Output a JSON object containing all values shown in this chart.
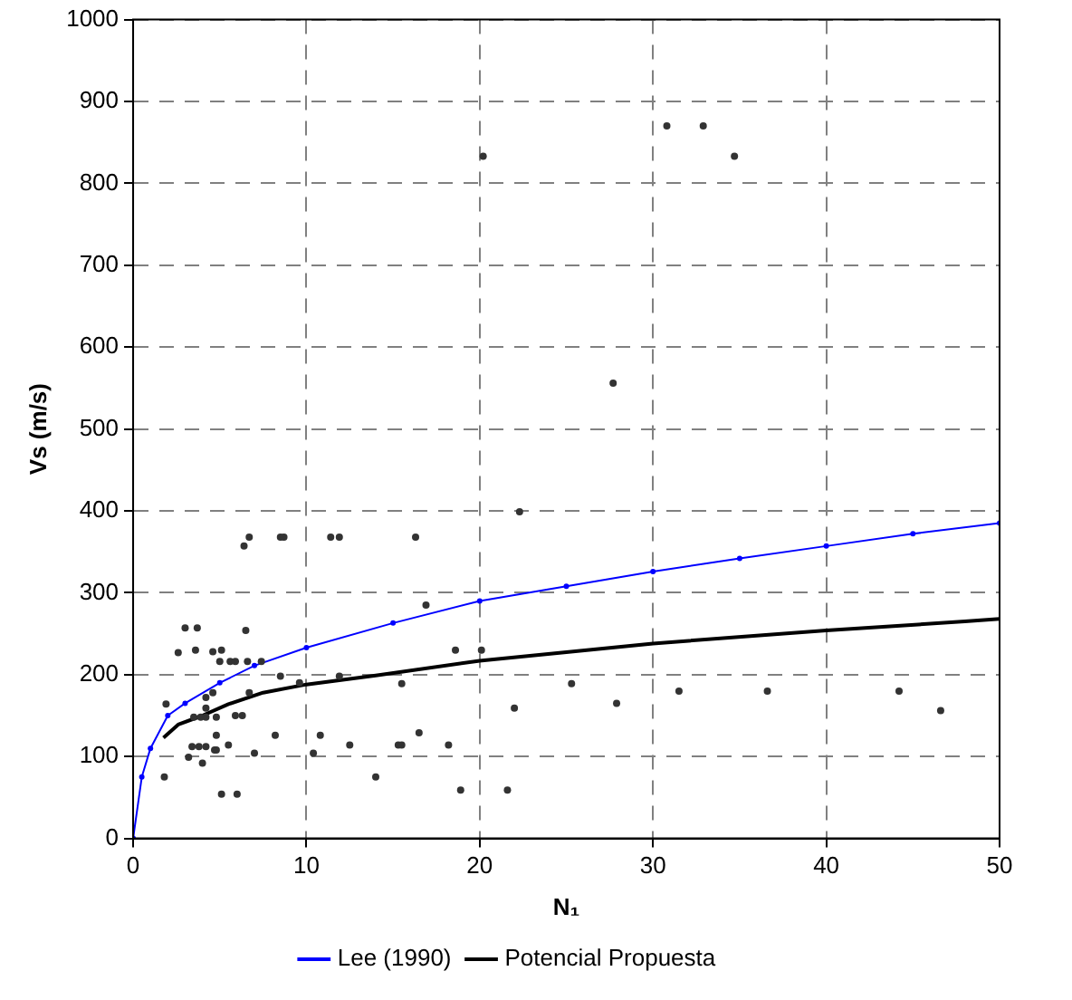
{
  "chart_data": {
    "type": "scatter",
    "xlabel": "N₁",
    "ylabel": "Vs (m/s)",
    "xlim": [
      0,
      50
    ],
    "xticks": [
      0,
      10,
      20,
      30,
      40,
      50
    ],
    "ylim": [
      0,
      1000
    ],
    "yticks": [
      0,
      100,
      200,
      300,
      400,
      500,
      600,
      700,
      800,
      900,
      1000
    ],
    "grid": true,
    "legend": "bottom",
    "series": [
      {
        "type": "scatter",
        "color": "#333333",
        "marker": "circle",
        "x": [
          6.4,
          6.7,
          8.5,
          8.7,
          11.4,
          11.9,
          3.0,
          3.7,
          6.5,
          2.6,
          3.6,
          4.6,
          5.1,
          5.0,
          5.6,
          5.9,
          6.6,
          7.4,
          8.5,
          9.6,
          11.9,
          4.6,
          6.7,
          1.9,
          4.2,
          4.2,
          3.5,
          3.9,
          4.2,
          4.8,
          5.9,
          6.3,
          4.8,
          8.2,
          10.8,
          12.5,
          3.4,
          3.8,
          4.2,
          4.7,
          4.8,
          5.5,
          3.2,
          7.0,
          10.4,
          4.0,
          1.8,
          14.0,
          5.1,
          6.0,
          16.3,
          22.3,
          16.9,
          18.6,
          20.1,
          15.5,
          25.3,
          27.9,
          31.5,
          36.6,
          44.2,
          46.6,
          22.0,
          16.5,
          15.3,
          15.5,
          18.2,
          18.9,
          21.6,
          20.2,
          30.8,
          32.9,
          34.7,
          27.7
        ],
        "values": [
          357,
          368,
          368,
          368,
          368,
          368,
          257,
          257,
          254,
          227,
          230,
          228,
          230,
          216,
          216,
          216,
          216,
          216,
          198,
          190,
          198,
          178,
          178,
          164,
          172,
          159,
          148,
          148,
          148,
          148,
          150,
          150,
          126,
          126,
          126,
          114,
          112,
          112,
          112,
          108,
          108,
          114,
          99,
          104,
          104,
          92,
          75,
          75,
          54,
          54,
          368,
          399,
          285,
          230,
          230,
          189,
          189,
          165,
          180,
          180,
          180,
          156,
          159,
          129,
          114,
          114,
          114,
          59,
          59,
          833,
          870,
          870,
          833,
          556
        ]
      },
      {
        "type": "line",
        "name": "Lee (1990)",
        "color": "#0000ff",
        "marker": "circle",
        "line_style": "solid",
        "x": [
          0,
          0.5,
          1,
          2,
          3,
          5,
          7,
          10,
          15,
          20,
          25,
          30,
          35,
          40,
          45,
          50
        ],
        "values": [
          0,
          75,
          110,
          150,
          165,
          190,
          211,
          233,
          263,
          290,
          308,
          326,
          342,
          357,
          372,
          385
        ]
      },
      {
        "type": "line",
        "name": "Potencial Propuesta",
        "color": "#000000",
        "marker": "none",
        "line_style": "solid",
        "x": [
          1.75,
          2.6,
          4,
          5.5,
          7.5,
          10,
          14,
          20,
          30,
          40,
          48,
          50
        ],
        "values": [
          123,
          139,
          150,
          164,
          178,
          188,
          199,
          217,
          238,
          254,
          265,
          268
        ]
      }
    ]
  }
}
